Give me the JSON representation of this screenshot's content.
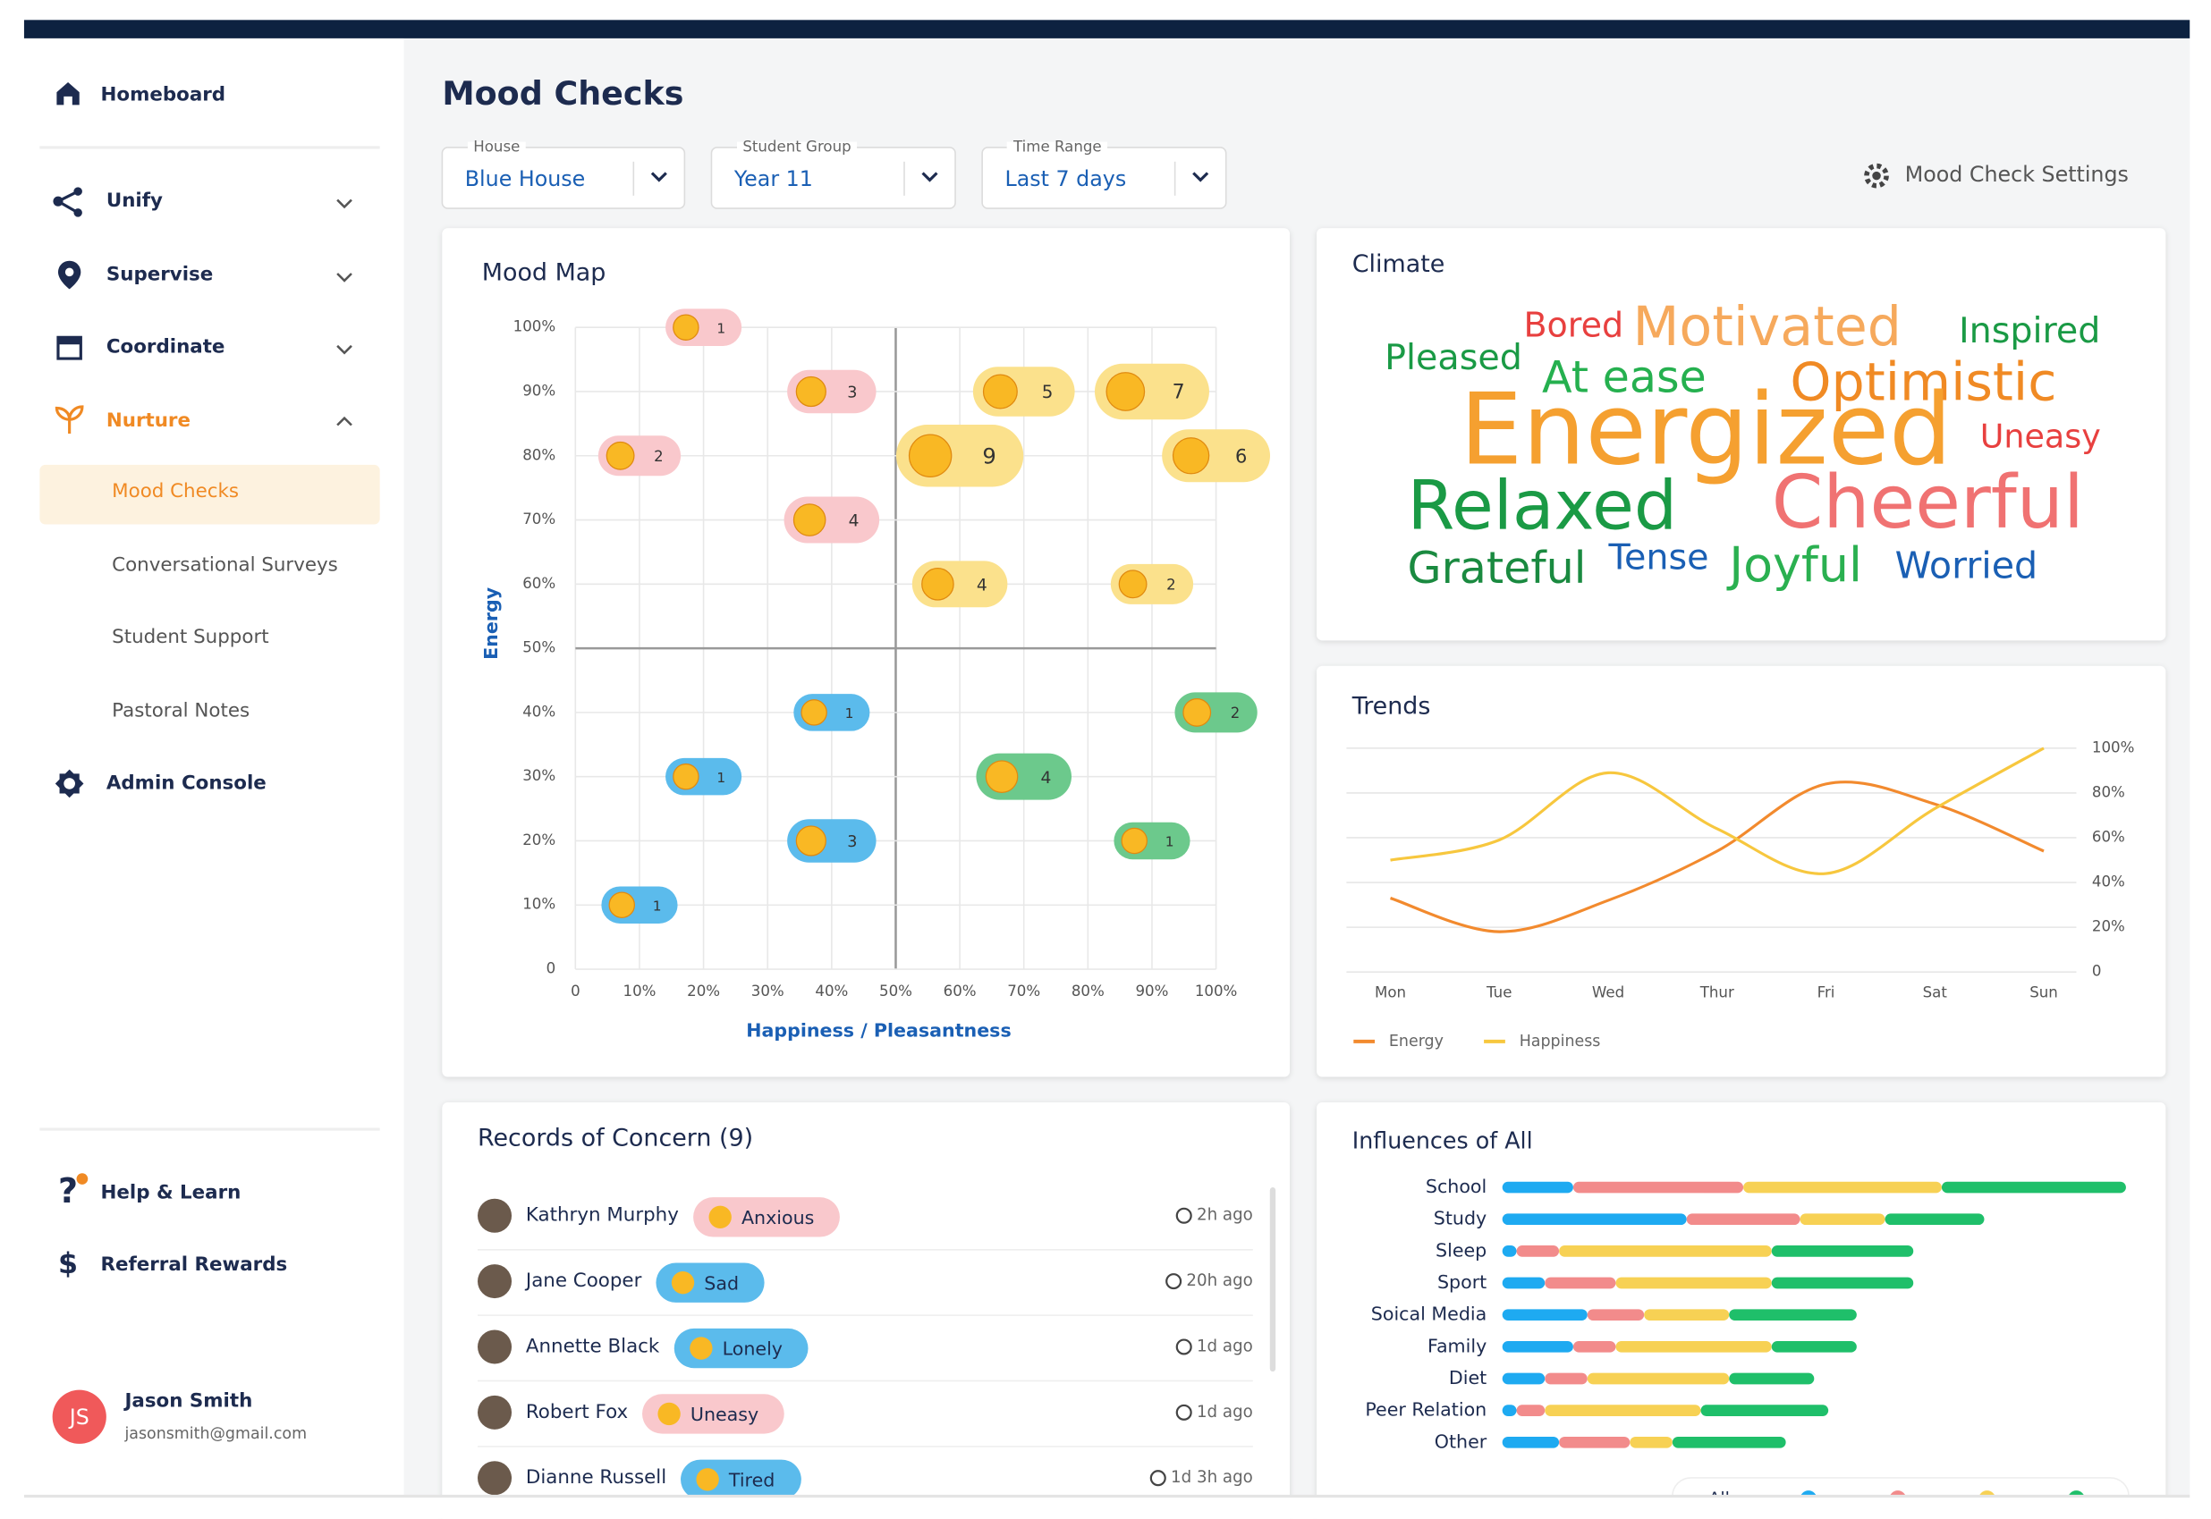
{
  "sidebar": {
    "items": [
      "Homeboard",
      "Unify",
      "Supervise",
      "Coordinate",
      "Nurture",
      "Mood Checks",
      "Conversational Surveys",
      "Student Support",
      "Pastoral Notes",
      "Admin Console"
    ],
    "footer_items": [
      "Help & Learn",
      "Referral Rewards"
    ],
    "user": {
      "initials": "JS",
      "name": "Jason Smith",
      "email": "jasonsmith@gmail.com"
    }
  },
  "header": {
    "title": "Mood Checks",
    "filters": [
      {
        "label": "House",
        "value": "Blue House"
      },
      {
        "label": "Student Group",
        "value": "Year 11"
      },
      {
        "label": "Time Range",
        "value": "Last 7 days"
      }
    ],
    "settings": "Mood Check Settings"
  },
  "chart_data": [
    {
      "type": "bubble",
      "title": "Mood Map",
      "x_label": "Happiness / Pleasantness",
      "y_label": "Energy",
      "xlim": [
        0,
        100
      ],
      "ylim": [
        0,
        100
      ],
      "xticks": [
        0,
        {
          "value": 10,
          "label": "10%"
        },
        {
          "value": 20,
          "label": "20%"
        },
        {
          "value": 30,
          "label": "30%"
        },
        {
          "value": 40,
          "label": "40%"
        },
        {
          "value": 50,
          "label": "50%"
        },
        {
          "value": 60,
          "label": "60%"
        },
        {
          "value": 70,
          "label": "70%"
        },
        {
          "value": 80,
          "label": "80%"
        },
        {
          "value": 90,
          "label": "90%"
        },
        {
          "value": 100,
          "label": "100%"
        }
      ],
      "yticks": [
        0,
        {
          "value": 10,
          "label": "10%"
        },
        {
          "value": 20,
          "label": "20%"
        },
        {
          "value": 30,
          "label": "30%"
        },
        {
          "value": 40,
          "label": "40%"
        },
        {
          "value": 50,
          "label": "50%"
        },
        {
          "value": 60,
          "label": "60%"
        },
        {
          "value": 70,
          "label": "70%"
        },
        {
          "value": 80,
          "label": "80%"
        },
        {
          "value": 90,
          "label": "90%"
        },
        {
          "value": 100,
          "label": "100%"
        }
      ],
      "grid": true,
      "points": [
        {
          "x": 20,
          "y": 100,
          "count": 1,
          "color": "#f9c8cc"
        },
        {
          "x": 40,
          "y": 90,
          "count": 3,
          "color": "#f9c8cc"
        },
        {
          "x": 70,
          "y": 90,
          "count": 5,
          "color": "#fbe18c"
        },
        {
          "x": 90,
          "y": 90,
          "count": 7,
          "color": "#fbe18c"
        },
        {
          "x": 10,
          "y": 80,
          "count": 2,
          "color": "#f9c8cc"
        },
        {
          "x": 60,
          "y": 80,
          "count": 9,
          "color": "#fbe18c"
        },
        {
          "x": 100,
          "y": 80,
          "count": 6,
          "color": "#fbe18c"
        },
        {
          "x": 40,
          "y": 70,
          "count": 4,
          "color": "#f9c8cc"
        },
        {
          "x": 60,
          "y": 60,
          "count": 4,
          "color": "#fbe18c"
        },
        {
          "x": 90,
          "y": 60,
          "count": 2,
          "color": "#fbe18c"
        },
        {
          "x": 40,
          "y": 40,
          "count": 1,
          "color": "#5bbbec"
        },
        {
          "x": 100,
          "y": 40,
          "count": 2,
          "color": "#6cc98c"
        },
        {
          "x": 20,
          "y": 30,
          "count": 1,
          "color": "#5bbbec"
        },
        {
          "x": 70,
          "y": 30,
          "count": 4,
          "color": "#6cc98c"
        },
        {
          "x": 40,
          "y": 20,
          "count": 3,
          "color": "#5bbbec"
        },
        {
          "x": 90,
          "y": 20,
          "count": 1,
          "color": "#6cc98c"
        },
        {
          "x": 10,
          "y": 10,
          "count": 1,
          "color": "#5bbbec"
        }
      ]
    },
    {
      "type": "wordcloud",
      "title": "Climate",
      "words": [
        {
          "text": "Bored",
          "color": "#e8403f",
          "weight": 24
        },
        {
          "text": "Motivated",
          "color": "#f6a95c",
          "weight": 38
        },
        {
          "text": "Inspired",
          "color": "#1a9a45",
          "weight": 25
        },
        {
          "text": "Pleased",
          "color": "#1a9a45",
          "weight": 25
        },
        {
          "text": "At ease",
          "color": "#25b04f",
          "weight": 31
        },
        {
          "text": "Optimistic",
          "color": "#f08a24",
          "weight": 37
        },
        {
          "text": "Energized",
          "color": "#f5a030",
          "weight": 70
        },
        {
          "text": "Uneasy",
          "color": "#e8403f",
          "weight": 23
        },
        {
          "text": "Relaxed",
          "color": "#1a9a45",
          "weight": 48
        },
        {
          "text": "Cheerful",
          "color": "#f07272",
          "weight": 52
        },
        {
          "text": "Grateful",
          "color": "#1a8a40",
          "weight": 31
        },
        {
          "text": "Tense",
          "color": "#1a5fb4",
          "weight": 25
        },
        {
          "text": "Joyful",
          "color": "#2ab050",
          "weight": 34
        },
        {
          "text": "Worried",
          "color": "#1a5fb4",
          "weight": 26
        }
      ]
    },
    {
      "type": "line",
      "title": "Trends",
      "categories": [
        "Mon",
        "Tue",
        "Wed",
        "Thur",
        "Fri",
        "Sat",
        "Sun"
      ],
      "series": [
        {
          "name": "Energy",
          "color": "#f28a2e",
          "values": [
            33,
            18,
            32,
            54,
            84,
            75,
            54
          ]
        },
        {
          "name": "Happiness",
          "color": "#f7c73e",
          "values": [
            50,
            59,
            89,
            64,
            44,
            73,
            100
          ]
        }
      ],
      "ylim": [
        0,
        100
      ],
      "yticks": [
        0,
        {
          "value": 20,
          "label": "20%"
        },
        {
          "value": 40,
          "label": "40%"
        },
        {
          "value": 60,
          "label": "60%"
        },
        {
          "value": 80,
          "label": "80%"
        },
        {
          "value": 100,
          "label": "100%"
        }
      ],
      "grid": true,
      "axis_side": "right",
      "legend": "bottom"
    },
    {
      "type": "stacked-barh",
      "title": "Influences of All",
      "categories": [
        "School",
        "Study",
        "Sleep",
        "Sport",
        "Soical Media",
        "Family",
        "Diet",
        "Peer Relation",
        "Other"
      ],
      "series": [
        {
          "color": "#1eaaf1",
          "values": [
            5,
            13,
            1,
            3,
            6,
            5,
            3,
            1,
            4
          ]
        },
        {
          "color": "#f28b8b",
          "values": [
            12,
            8,
            3,
            5,
            4,
            3,
            3,
            2,
            5
          ]
        },
        {
          "color": "#f7d154",
          "values": [
            14,
            6,
            15,
            11,
            6,
            11,
            10,
            11,
            3
          ]
        },
        {
          "color": "#1fbf6a",
          "values": [
            13,
            7,
            10,
            10,
            9,
            6,
            6,
            9,
            8
          ]
        }
      ],
      "legend_label": "All"
    }
  ],
  "records": {
    "title": "Records of Concern (9)",
    "rows": [
      {
        "name": "Kathryn Murphy",
        "mood": "Anxious",
        "time": "2h ago"
      },
      {
        "name": "Jane Cooper",
        "mood": "Sad",
        "time": "20h ago"
      },
      {
        "name": "Annette Black",
        "mood": "Lonely",
        "time": "1d ago"
      },
      {
        "name": "Robert Fox",
        "mood": "Uneasy",
        "time": "1d ago"
      },
      {
        "name": "Dianne Russell",
        "mood": "Tired",
        "time": "1d 3h ago"
      }
    ]
  }
}
